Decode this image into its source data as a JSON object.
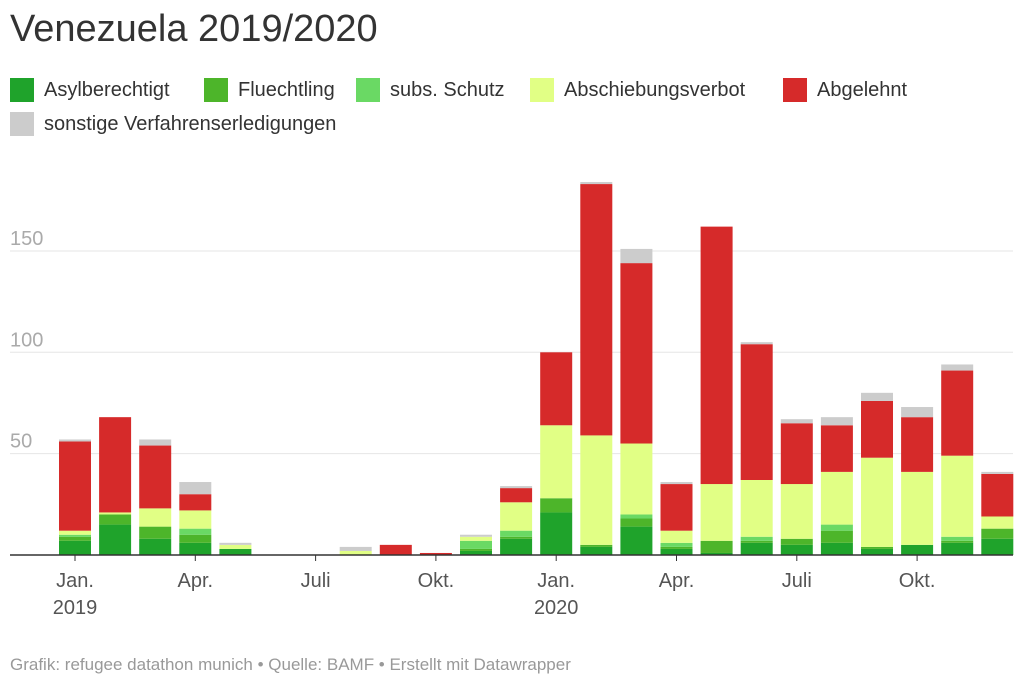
{
  "title": "Venezuela 2019/2020",
  "footer": "Grafik: refugee datathon munich • Quelle: BAMF • Erstellt mit Datawrapper",
  "chart_data": {
    "type": "bar",
    "stacked": true,
    "title": "Venezuela 2019/2020",
    "xlabel": "",
    "ylabel": "",
    "ylim": [
      0,
      185
    ],
    "yticks": [
      50,
      100,
      150
    ],
    "grid": true,
    "legend_position": "top",
    "categories": [
      "Jan 2019",
      "Feb 2019",
      "Mar 2019",
      "Apr 2019",
      "May 2019",
      "Jun 2019",
      "Jul 2019",
      "Aug 2019",
      "Sep 2019",
      "Oct 2019",
      "Nov 2019",
      "Dec 2019",
      "Jan 2020",
      "Feb 2020",
      "Mar 2020",
      "Apr 2020",
      "May 2020",
      "Jun 2020",
      "Jul 2020",
      "Aug 2020",
      "Sep 2020",
      "Oct 2020",
      "Nov 2020",
      "Dec 2020"
    ],
    "x_tick_labels": [
      {
        "index": 0,
        "line1": "Jan.",
        "line2": "2019"
      },
      {
        "index": 3,
        "line1": "Apr.",
        "line2": ""
      },
      {
        "index": 6,
        "line1": "Juli",
        "line2": ""
      },
      {
        "index": 9,
        "line1": "Okt.",
        "line2": ""
      },
      {
        "index": 12,
        "line1": "Jan.",
        "line2": "2020"
      },
      {
        "index": 15,
        "line1": "Apr.",
        "line2": ""
      },
      {
        "index": 18,
        "line1": "Juli",
        "line2": ""
      },
      {
        "index": 21,
        "line1": "Okt.",
        "line2": ""
      }
    ],
    "series": [
      {
        "name": "Asylberechtigt",
        "color": "#1fa32b",
        "values": [
          7,
          15,
          8,
          6,
          3,
          0,
          0,
          0,
          0,
          0,
          2,
          8,
          21,
          4,
          14,
          3,
          1,
          6,
          5,
          6,
          3,
          5,
          6,
          8
        ]
      },
      {
        "name": "Fluechtling",
        "color": "#4db52a",
        "values": [
          2,
          5,
          6,
          4,
          0,
          0,
          0,
          0,
          0,
          0,
          1,
          1,
          7,
          1,
          4,
          1,
          6,
          1,
          3,
          6,
          1,
          0,
          1,
          5
        ]
      },
      {
        "name": "subs. Schutz",
        "color": "#6ad964",
        "values": [
          1,
          0,
          0,
          3,
          0,
          0,
          0,
          0,
          0,
          0,
          4,
          3,
          0,
          0,
          2,
          2,
          0,
          2,
          0,
          3,
          0,
          0,
          2,
          0
        ]
      },
      {
        "name": "Abschiebungsverbot",
        "color": "#e1ff85",
        "values": [
          2,
          1,
          9,
          9,
          2,
          0,
          0,
          2,
          0,
          0,
          2,
          14,
          36,
          54,
          35,
          6,
          28,
          28,
          27,
          26,
          44,
          36,
          40,
          6
        ]
      },
      {
        "name": "Abgelehnt",
        "color": "#d62a2a",
        "values": [
          44,
          47,
          31,
          8,
          0,
          0,
          0,
          0,
          5,
          1,
          0,
          7,
          36,
          124,
          89,
          23,
          127,
          67,
          30,
          23,
          28,
          27,
          42,
          21
        ]
      },
      {
        "name": "sonstige Verfahrenserledigungen",
        "color": "#cccccc",
        "values": [
          1,
          0,
          3,
          6,
          1,
          0,
          0,
          2,
          0,
          0,
          1,
          1,
          0,
          1,
          7,
          1,
          0,
          1,
          2,
          4,
          4,
          5,
          3,
          1
        ]
      }
    ]
  }
}
